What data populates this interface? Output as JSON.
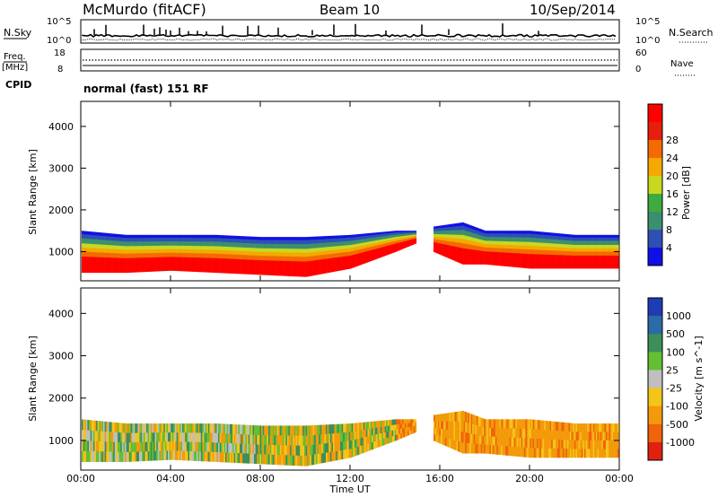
{
  "header": {
    "station": "McMurdo (fitACF)",
    "beam": "Beam 10",
    "date": "10/Sep/2014"
  },
  "top_panel": {
    "left_label": "N.Sky",
    "right_label": "N.Search",
    "left_ticks": [
      "10^5",
      "10^0"
    ],
    "right_ticks": [
      "10^5",
      "10^0"
    ]
  },
  "freq_panel": {
    "left_label": "Freq.",
    "left_unit": "[MHz]",
    "left_ticks": [
      "18",
      "8"
    ],
    "right_label": "Nave",
    "right_ticks": [
      "60",
      "0"
    ]
  },
  "cpid": {
    "label": "CPID",
    "value": "normal (fast) 151 RF"
  },
  "x_axis": {
    "label": "Time UT",
    "ticks": [
      "00:00",
      "04:00",
      "08:00",
      "12:00",
      "16:00",
      "20:00",
      "00:00"
    ]
  },
  "colors": {
    "power_scale": [
      "#1010e6",
      "#2e4fb4",
      "#3b8f6e",
      "#3faa3f",
      "#c8d820",
      "#f5a800",
      "#f26b00",
      "#e81e0c",
      "#ff0000"
    ],
    "velocity_scale": [
      "#1e3cb4",
      "#2c6aa8",
      "#3a8f5a",
      "#62c032",
      "#bfbfbf",
      "#f4c518",
      "#f29a0a",
      "#f0630a",
      "#e02010"
    ]
  },
  "chart_data": [
    {
      "type": "heatmap",
      "title": "",
      "xlabel": "Time UT",
      "ylabel": "Slant Range [km]",
      "xlim": [
        0,
        24
      ],
      "ylim": [
        300,
        4600
      ],
      "x_ticks": [
        "00:00",
        "04:00",
        "08:00",
        "12:00",
        "16:00",
        "20:00",
        "00:00"
      ],
      "y_ticks": [
        1000,
        2000,
        3000,
        4000
      ],
      "colorbar": {
        "label": "Power [dB]",
        "ticks": [
          4,
          8,
          12,
          16,
          20,
          24,
          28
        ]
      },
      "echo_region": {
        "time_h": [
          0,
          2,
          4,
          6,
          8,
          10,
          12,
          14,
          14.9,
          15.7,
          17,
          18,
          20,
          22,
          24
        ],
        "lower_km": [
          500,
          500,
          550,
          500,
          450,
          400,
          600,
          1000,
          1200,
          1000,
          700,
          700,
          600,
          600,
          600
        ],
        "upper_km": [
          1500,
          1400,
          1400,
          1400,
          1350,
          1350,
          1400,
          1500,
          1500,
          1600,
          1700,
          1500,
          1500,
          1400,
          1400
        ]
      }
    },
    {
      "type": "heatmap",
      "title": "",
      "xlabel": "Time UT",
      "ylabel": "Slant Range [km]",
      "xlim": [
        0,
        24
      ],
      "ylim": [
        300,
        4600
      ],
      "x_ticks": [
        "00:00",
        "04:00",
        "08:00",
        "12:00",
        "16:00",
        "20:00",
        "00:00"
      ],
      "y_ticks": [
        1000,
        2000,
        3000,
        4000
      ],
      "colorbar": {
        "label": "Velocity [m s^-1]",
        "ticks": [
          1000,
          500,
          100,
          25,
          -25,
          -100,
          -500,
          -1000
        ]
      },
      "echo_region": {
        "time_h": [
          0,
          2,
          4,
          6,
          8,
          10,
          12,
          14,
          14.9,
          15.7,
          17,
          18,
          20,
          22,
          24
        ],
        "lower_km": [
          500,
          500,
          550,
          500,
          450,
          400,
          600,
          1000,
          1200,
          1000,
          700,
          700,
          600,
          600,
          600
        ],
        "upper_km": [
          1500,
          1400,
          1400,
          1400,
          1350,
          1350,
          1400,
          1500,
          1500,
          1600,
          1700,
          1500,
          1500,
          1400,
          1400
        ]
      }
    }
  ]
}
